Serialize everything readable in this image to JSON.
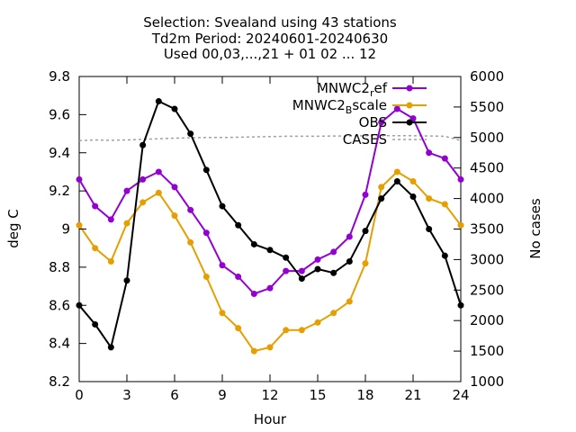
{
  "chart_data": {
    "type": "line",
    "title_lines": [
      "Selection: Svealand using    43 stations",
      "Td2m   Period: 20240601-20240630",
      "Used 00,03,...,21 + 01 02 ... 12"
    ],
    "xlabel": "Hour",
    "ylabel": "deg C",
    "y2label": "No cases",
    "xlim": [
      0,
      24
    ],
    "ylim": [
      8.2,
      9.8
    ],
    "y2lim": [
      1000,
      6000
    ],
    "xticks": [
      "0",
      "3",
      "6",
      "9",
      "12",
      "15",
      "18",
      "21",
      "24"
    ],
    "yticks": [
      "8.2",
      "8.4",
      "8.6",
      "8.8",
      "9",
      "9.2",
      "9.4",
      "9.6",
      "9.8"
    ],
    "y2ticks": [
      "1000",
      "1500",
      "2000",
      "2500",
      "3000",
      "3500",
      "4000",
      "4500",
      "5000",
      "5500",
      "6000"
    ],
    "grid": false,
    "legend_position": "top-right",
    "x": [
      0,
      1,
      2,
      3,
      4,
      5,
      6,
      7,
      8,
      9,
      10,
      11,
      12,
      13,
      14,
      15,
      16,
      17,
      18,
      19,
      20,
      21,
      22,
      23,
      24
    ],
    "series": [
      {
        "name": "MNWC2_ref",
        "legend_main": "MNWC2",
        "legend_sub": "r",
        "legend_tail": "ef",
        "color": "#9400d3",
        "axis": "y",
        "values": [
          9.26,
          9.12,
          9.05,
          9.2,
          9.26,
          9.3,
          9.22,
          9.1,
          8.98,
          8.81,
          8.75,
          8.66,
          8.69,
          8.78,
          8.78,
          8.84,
          8.88,
          8.96,
          9.18,
          9.56,
          9.63,
          9.58,
          9.4,
          9.37,
          9.26
        ]
      },
      {
        "name": "MNWC2_Bscale",
        "legend_main": "MNWC2",
        "legend_sub": "B",
        "legend_tail": "scale",
        "color": "#e69f00",
        "axis": "y",
        "values": [
          9.02,
          8.9,
          8.83,
          9.03,
          9.14,
          9.19,
          9.07,
          8.93,
          8.75,
          8.56,
          8.48,
          8.36,
          8.38,
          8.47,
          8.47,
          8.51,
          8.56,
          8.62,
          8.82,
          9.22,
          9.3,
          9.25,
          9.16,
          9.13,
          9.02
        ]
      },
      {
        "name": "OBS",
        "legend_main": "OBS",
        "legend_sub": "",
        "legend_tail": "",
        "color": "#000000",
        "axis": "y",
        "values": [
          8.6,
          8.5,
          8.38,
          8.73,
          9.44,
          9.67,
          9.63,
          9.5,
          9.31,
          9.12,
          9.02,
          8.92,
          8.89,
          8.85,
          8.74,
          8.79,
          8.77,
          8.83,
          8.99,
          9.16,
          9.25,
          9.17,
          9.0,
          8.86,
          8.6
        ]
      },
      {
        "name": "CASES",
        "legend_main": "CASES",
        "legend_sub": "",
        "legend_tail": "",
        "color": "#a0a0a0",
        "axis": "y2",
        "dashed": true,
        "values": [
          4950,
          4960,
          4955,
          4960,
          4970,
          4980,
          4990,
          4995,
          5000,
          5000,
          5005,
          5010,
          5015,
          5020,
          5020,
          5020,
          5025,
          5025,
          5030,
          5030,
          5030,
          5030,
          5025,
          5020,
          4950
        ]
      }
    ]
  }
}
